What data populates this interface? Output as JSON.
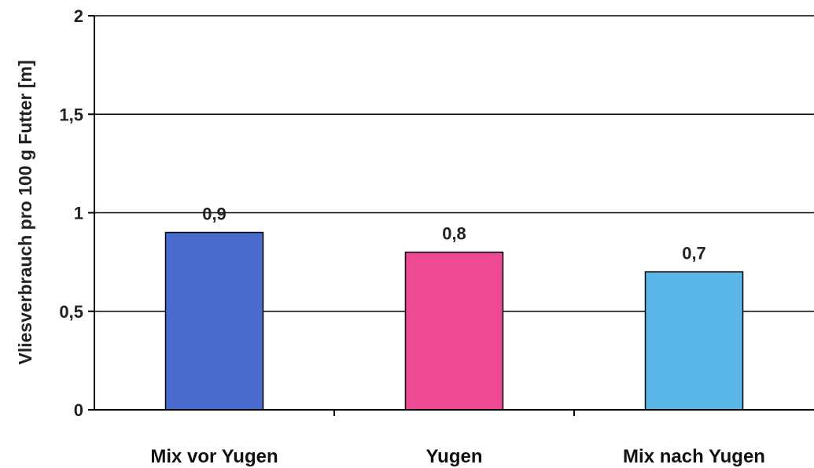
{
  "chart_data": {
    "type": "bar",
    "title": "",
    "xlabel": "",
    "ylabel": "Vliesverbrauch pro 100 g Futter [m]",
    "ylim": [
      0,
      2
    ],
    "yticks": [
      0,
      0.5,
      1,
      1.5,
      2
    ],
    "ytick_labels": [
      "0",
      "0,5",
      "1",
      "1,5",
      "2"
    ],
    "grid": true,
    "categories": [
      "Mix vor Yugen",
      "Yugen",
      "Mix nach Yugen"
    ],
    "values": [
      0.9,
      0.8,
      0.7
    ],
    "value_labels": [
      "0,9",
      "0,8",
      "0,7"
    ],
    "colors": [
      "#4a6ccf",
      "#ee4a94",
      "#5ab6e6"
    ]
  }
}
